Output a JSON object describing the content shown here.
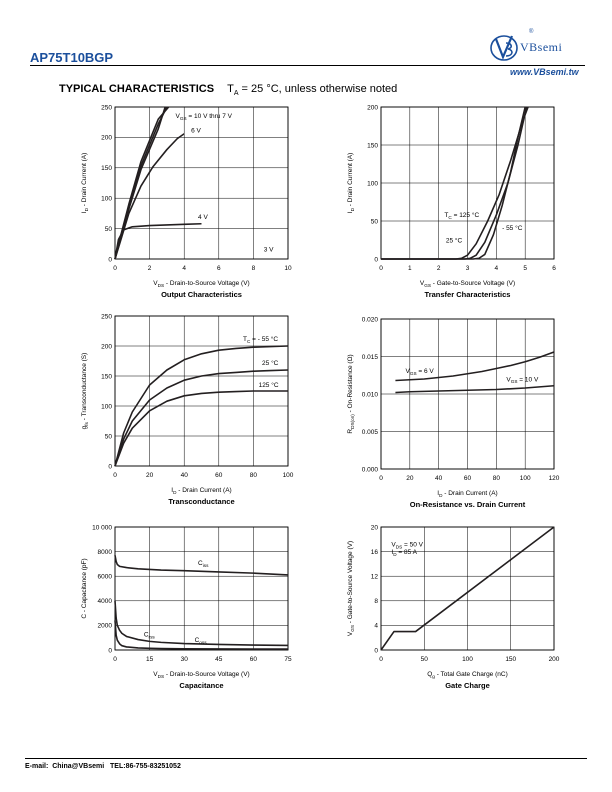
{
  "header": {
    "part_number": "AP75T10BGP",
    "logo_text": "VBsemi",
    "registered_mark": "®",
    "website": "www.VBsemi.tw"
  },
  "section": {
    "title": "TYPICAL CHARACTERISTICS",
    "condition_prefix": "T",
    "condition_sub": "A",
    "condition_text": " = 25 °C, unless otherwise noted"
  },
  "footer": {
    "text": "E-mail:  China@VBsemi   TEL:86-755-83251052"
  },
  "colors": {
    "curve": "#231f20",
    "grid": "#000000",
    "brand_blue": "#1b4f9c"
  },
  "chart_data": [
    {
      "id": "output",
      "type": "line",
      "title": "Output Characteristics",
      "xlabel": {
        "main": "V",
        "sub": "DS",
        "rest": " - Drain-to-Source Voltage (V)"
      },
      "ylabel": {
        "main": "I",
        "sub": "D",
        "rest": " - Drain Current (A)"
      },
      "xlim": [
        0,
        10
      ],
      "ylim": [
        0,
        250
      ],
      "xticks": [
        0,
        2,
        4,
        6,
        8,
        10
      ],
      "yticks": [
        0,
        50,
        100,
        150,
        200,
        250
      ],
      "ytick_labels": [
        "0",
        "50",
        "100",
        "150",
        "200",
        "250"
      ],
      "grid": true,
      "series": [
        {
          "name": "VGS = 10 V thru 7 V",
          "x": [
            0,
            0.3,
            0.8,
            1.5,
            2.5,
            3.1
          ],
          "y": [
            0,
            35,
            90,
            160,
            230,
            250
          ]
        },
        {
          "x": [
            0,
            0.3,
            0.8,
            1.5,
            2.5,
            3.0
          ],
          "y": [
            0,
            33,
            86,
            153,
            222,
            250
          ]
        },
        {
          "x": [
            0,
            0.3,
            0.8,
            1.5,
            2.5,
            2.9
          ],
          "y": [
            0,
            31,
            82,
            147,
            214,
            250
          ]
        },
        {
          "name": "6 V",
          "x": [
            0,
            0.3,
            0.8,
            1.5,
            2.2,
            3.0,
            3.6,
            4.0
          ],
          "y": [
            0,
            28,
            75,
            120,
            152,
            180,
            198,
            206
          ]
        },
        {
          "name": "4 V",
          "x": [
            0,
            0.2,
            0.5,
            1.0,
            2.0,
            3.0,
            4.0,
            5.0
          ],
          "y": [
            0,
            32,
            48,
            53,
            55,
            56,
            57,
            58
          ]
        }
      ],
      "annotations": [
        {
          "label": "V",
          "sub": "GS",
          "text": " = 10 V thru 7 V",
          "x": 3.5,
          "y": 232
        },
        {
          "label": "6 V",
          "x": 4.4,
          "y": 208
        },
        {
          "label": "4 V",
          "x": 4.8,
          "y": 66
        },
        {
          "label": "3 V",
          "x": 8.6,
          "y": 12
        }
      ]
    },
    {
      "id": "transfer",
      "type": "line",
      "title": "Transfer Characteristics",
      "xlabel": {
        "main": "V",
        "sub": "GS",
        "rest": " - Gate-to-Source Voltage (V)"
      },
      "ylabel": {
        "main": "I",
        "sub": "D",
        "rest": " - Drain Current (A)"
      },
      "xlim": [
        0,
        6
      ],
      "ylim": [
        0,
        200
      ],
      "xticks": [
        0,
        1,
        2,
        3,
        4,
        5,
        6
      ],
      "yticks": [
        0,
        50,
        100,
        150,
        200
      ],
      "ytick_labels": [
        "0",
        "50",
        "100",
        "150",
        "200"
      ],
      "grid": true,
      "series": [
        {
          "name": "TC = 125 °C",
          "x": [
            0,
            2.6,
            2.8,
            3.0,
            3.3,
            3.7,
            4.1,
            4.5,
            4.9,
            5.1
          ],
          "y": [
            0,
            0,
            1,
            5,
            20,
            50,
            85,
            130,
            180,
            200
          ]
        },
        {
          "name": "25 °C",
          "x": [
            0,
            2.9,
            3.1,
            3.3,
            3.6,
            4.0,
            4.4,
            4.75,
            5.05
          ],
          "y": [
            0,
            0,
            1,
            5,
            22,
            58,
            100,
            150,
            200
          ]
        },
        {
          "name": "- 55 °C",
          "x": [
            0,
            3.2,
            3.4,
            3.6,
            3.9,
            4.2,
            4.5,
            4.75,
            5.0
          ],
          "y": [
            0,
            0,
            1,
            6,
            32,
            70,
            115,
            160,
            200
          ]
        }
      ],
      "annotations": [
        {
          "label": "T",
          "sub": "C",
          "text": " = 125 °C",
          "x": 2.2,
          "y": 55
        },
        {
          "label": "25 °C",
          "x": 2.25,
          "y": 22
        },
        {
          "label": "- 55 °C",
          "x": 4.2,
          "y": 38
        }
      ]
    },
    {
      "id": "gfs",
      "type": "line",
      "title": "Transconductance",
      "xlabel": {
        "main": "I",
        "sub": "D",
        "rest": " - Drain Current (A)"
      },
      "ylabel": {
        "main": "g",
        "sub": "fs",
        "rest": " - Transconductance (S)"
      },
      "xlim": [
        0,
        100
      ],
      "ylim": [
        0,
        250
      ],
      "xticks": [
        0,
        20,
        40,
        60,
        80,
        100
      ],
      "yticks": [
        0,
        50,
        100,
        150,
        200,
        250
      ],
      "ytick_labels": [
        "0",
        "50",
        "100",
        "150",
        "200",
        "250"
      ],
      "grid": true,
      "series": [
        {
          "name": "TC = - 55 °C",
          "x": [
            0,
            5,
            10,
            20,
            30,
            40,
            50,
            60,
            70,
            80,
            90,
            100
          ],
          "y": [
            0,
            55,
            90,
            135,
            160,
            177,
            187,
            193,
            196,
            198,
            199,
            200
          ]
        },
        {
          "name": "25 °C",
          "x": [
            0,
            5,
            10,
            20,
            30,
            40,
            50,
            60,
            70,
            80,
            90,
            100
          ],
          "y": [
            0,
            45,
            75,
            110,
            130,
            143,
            150,
            154,
            156,
            158,
            159,
            160
          ]
        },
        {
          "name": "125 °C",
          "x": [
            0,
            5,
            10,
            20,
            30,
            40,
            50,
            60,
            70,
            80,
            90,
            100
          ],
          "y": [
            0,
            38,
            63,
            92,
            108,
            117,
            121,
            123,
            124,
            125,
            125,
            125
          ]
        }
      ],
      "annotations": [
        {
          "label": "T",
          "sub": "C",
          "text": " = - 55 °C",
          "x": 74,
          "y": 208
        },
        {
          "label": "25 °C",
          "x": 85,
          "y": 168
        },
        {
          "label": "125 °C",
          "x": 83,
          "y": 132
        }
      ]
    },
    {
      "id": "rdson",
      "type": "line",
      "title": "On-Resistance vs. Drain Current",
      "xlabel": {
        "main": "I",
        "sub": "D",
        "rest": " - Drain Current (A)"
      },
      "ylabel": {
        "main": "R",
        "sub": "DS(on)",
        "rest": " - On-Resistance (Ω)"
      },
      "xlim": [
        0,
        120
      ],
      "ylim": [
        0,
        0.02
      ],
      "xticks": [
        0,
        20,
        40,
        60,
        80,
        100,
        120
      ],
      "yticks": [
        0,
        0.005,
        0.01,
        0.015,
        0.02
      ],
      "ytick_labels": [
        "0.000",
        "0.005",
        "0.010",
        "0.015",
        "0.020"
      ],
      "grid": true,
      "series": [
        {
          "name": "VGS = 6 V",
          "x": [
            10,
            20,
            30,
            40,
            50,
            60,
            70,
            80,
            90,
            100,
            110,
            120
          ],
          "y": [
            0.0118,
            0.0119,
            0.012,
            0.0122,
            0.0124,
            0.0127,
            0.013,
            0.0134,
            0.0138,
            0.0143,
            0.0149,
            0.0156
          ]
        },
        {
          "name": "VGS = 10 V",
          "x": [
            10,
            20,
            40,
            60,
            80,
            100,
            120
          ],
          "y": [
            0.0102,
            0.0103,
            0.0104,
            0.0105,
            0.0106,
            0.0108,
            0.0111
          ]
        }
      ],
      "annotations": [
        {
          "label": "V",
          "sub": "GS",
          "text": " = 6 V",
          "x": 17,
          "y": 0.0128
        },
        {
          "label": "V",
          "sub": "GS",
          "text": " = 10 V",
          "x": 87,
          "y": 0.0117
        }
      ]
    },
    {
      "id": "capacitance",
      "type": "line",
      "title": "Capacitance",
      "xlabel": {
        "main": "V",
        "sub": "DS",
        "rest": " - Drain-to-Source Voltage (V)"
      },
      "ylabel": {
        "main": "C",
        "sub": "",
        "rest": " - Capacitance (pF)"
      },
      "xlim": [
        0,
        75
      ],
      "ylim": [
        0,
        10000
      ],
      "xticks": [
        0,
        15,
        30,
        45,
        60,
        75
      ],
      "yticks": [
        0,
        2000,
        4000,
        6000,
        8000,
        10000
      ],
      "ytick_labels": [
        "0",
        "2000",
        "4000",
        "6000",
        "8000",
        "10 000"
      ],
      "grid": true,
      "series": [
        {
          "name": "Ciss",
          "x": [
            0,
            0.5,
            1,
            2,
            5,
            10,
            20,
            30,
            45,
            60,
            75
          ],
          "y": [
            7700,
            7200,
            6950,
            6800,
            6700,
            6600,
            6500,
            6450,
            6350,
            6250,
            6100
          ]
        },
        {
          "name": "Coss",
          "x": [
            0,
            0.5,
            1,
            2,
            3,
            5,
            10,
            15,
            20,
            30,
            45,
            60,
            75
          ],
          "y": [
            4000,
            2600,
            2000,
            1600,
            1350,
            1100,
            850,
            700,
            620,
            520,
            450,
            400,
            370
          ]
        },
        {
          "name": "Crss",
          "x": [
            0,
            0.5,
            1,
            2,
            3,
            5,
            10,
            15,
            20,
            30,
            45,
            60,
            75
          ],
          "y": [
            2400,
            1200,
            800,
            500,
            350,
            250,
            170,
            140,
            120,
            100,
            90,
            80,
            75
          ]
        }
      ],
      "annotations": [
        {
          "label": "C",
          "sub": "iss",
          "text": "",
          "x": 36,
          "y": 6900
        },
        {
          "label": "C",
          "sub": "rss",
          "text": "",
          "x": 12.5,
          "y": 1100
        },
        {
          "label": "C",
          "sub": "oss",
          "text": "",
          "x": 34.5,
          "y": 650
        }
      ]
    },
    {
      "id": "gatecharge",
      "type": "line",
      "title": "Gate Charge",
      "xlabel": {
        "main": "Q",
        "sub": "g",
        "rest": " - Total Gate Charge (nC)"
      },
      "ylabel": {
        "main": "V",
        "sub": "GS",
        "rest": " - Gate-to-Source Voltage (V)"
      },
      "xlim": [
        0,
        200
      ],
      "ylim": [
        0,
        20
      ],
      "xticks": [
        0,
        50,
        100,
        150,
        200
      ],
      "yticks": [
        0,
        4,
        8,
        12,
        16,
        20
      ],
      "ytick_labels": [
        "0",
        "4",
        "8",
        "12",
        "16",
        "20"
      ],
      "grid": true,
      "series": [
        {
          "x": [
            0,
            15,
            40,
            200
          ],
          "y": [
            0,
            3,
            3,
            20
          ]
        }
      ],
      "annotations": [
        {
          "label": "V",
          "sub": "DS",
          "text": " = 50 V",
          "x": 12,
          "y": 16.8
        },
        {
          "label": "I",
          "sub": "D",
          "text": " = 85 A",
          "x": 12,
          "y": 15.6
        }
      ]
    }
  ]
}
